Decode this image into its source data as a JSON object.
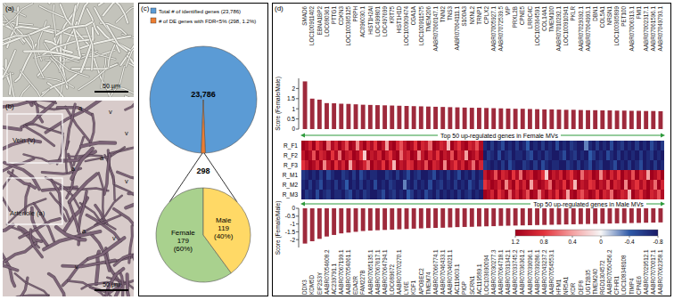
{
  "images": [
    {
      "label": "(a)",
      "scale_bar": "50 µm"
    },
    {
      "label": "(b)",
      "scale_bar": "50 µm",
      "regions": [
        "Vein (v)",
        "Arteriole (a)"
      ],
      "markers": [
        "a",
        "v",
        "v",
        "a",
        "a",
        "v",
        "a",
        "v",
        "v"
      ]
    }
  ],
  "chart_data": [
    {
      "type": "pie",
      "label": "(c)",
      "categories": [
        "Total # of identified genes (23,786)",
        "# of DE genes with FDR<5% (298, 1.2%)"
      ],
      "values": [
        23786,
        298
      ],
      "value_labels": [
        "23,786",
        "298"
      ],
      "colors": [
        "#5b9bd5",
        "#ed7d31"
      ],
      "data_labels": true,
      "legend": "top"
    },
    {
      "type": "pie",
      "categories": [
        "Female",
        "Male"
      ],
      "values": [
        179,
        119
      ],
      "value_labels": [
        "179",
        "119"
      ],
      "percent_labels": [
        "(60%)",
        "(40%)"
      ],
      "colors": [
        "#a9d18e",
        "#ffd966"
      ],
      "data_labels": true
    },
    {
      "type": "bar",
      "label": "(d)",
      "title": "Top 50 up-regulated genes in Female MVs",
      "y_label": "Score (Female/Male)",
      "categories": [
        "SMAD6",
        "LOC100911402",
        "EBNA1BP2",
        "LOC680361",
        "PTTG1",
        "CDKN3",
        "LOC100365125",
        "PRPH",
        "AC096030.1",
        "HIST1H2AI",
        "LOC499801",
        "LOC497699",
        "KRT75",
        "HIST1H1D",
        "LOC100909474",
        "CGA1A",
        "LOC100911575",
        "TMEM206",
        "AABR07060147.1",
        "TNNI2",
        "TNS3",
        "AABR07064111.1",
        "S100A3",
        "NXNL2",
        "TRNP1",
        "CPLX2",
        "AABR07005927.1",
        "AABR07072539.5",
        "VIP",
        "PRXL2B",
        "CPNE5",
        "LRRC4C",
        "LOC100364591",
        "COL14A1",
        "TMEM100",
        "AABR07010292.1",
        "LOC100910941",
        "PKLR",
        "AABR07029392.1",
        "AABR07064993.1",
        "DBN1",
        "COL5A1",
        "NRSN1",
        "LOC100365899",
        "PET100",
        "AABR07006313.1",
        "FMI1",
        "AABR07002317.1",
        "AABR07061596.1",
        "AABR07049793.1"
      ],
      "values": [
        2.35,
        1.5,
        1.45,
        1.28,
        1.27,
        1.25,
        1.24,
        1.22,
        1.2,
        1.19,
        1.18,
        1.17,
        1.16,
        1.15,
        1.14,
        1.13,
        1.12,
        1.11,
        1.1,
        1.09,
        1.08,
        1.07,
        1.06,
        1.05,
        1.05,
        1.04,
        1.03,
        1.02,
        1.01,
        1.0,
        1.0,
        0.99,
        0.98,
        0.97,
        0.97,
        0.96,
        0.95,
        0.95,
        0.94,
        0.93,
        0.93,
        0.92,
        0.92,
        0.91,
        0.91,
        0.9,
        0.9,
        0.89,
        0.89,
        0.88
      ],
      "color": "#9e2a3c",
      "ylim": [
        0,
        2.5
      ],
      "yticks": [
        0,
        0.5,
        1,
        1.5,
        2
      ]
    },
    {
      "type": "heatmap",
      "rows": [
        "R_F1",
        "R_F2",
        "R_F3",
        "R_M1",
        "R_M2",
        "R_M3"
      ],
      "cells": [
        [
          1.2,
          1.1,
          0.9,
          1.2,
          0.8,
          1.0,
          1.2,
          0.6,
          1.1,
          0.9,
          1.2,
          1.0,
          0.7,
          1.2,
          1.1,
          0.5,
          1.0,
          1.2,
          0.9,
          1.1,
          0.8,
          1.2,
          1.0,
          0.4,
          1.1,
          1.2,
          0.9,
          0.7,
          1.0,
          1.2,
          1.1,
          0.8,
          1.2,
          0.9,
          1.0,
          0.6,
          1.2,
          1.1,
          0.9,
          1.0,
          0.3,
          1.2,
          1.0,
          0.8,
          1.1,
          1.2,
          0.9,
          1.0,
          0.7,
          1.1,
          -0.7,
          -0.8,
          -0.6,
          -0.8,
          -0.7,
          -0.5,
          -0.8,
          -0.7,
          -0.8,
          -0.6,
          -0.8,
          -0.7,
          -0.4,
          -0.8,
          -0.7,
          -0.8,
          -0.6,
          -0.8,
          -0.7,
          -0.8,
          -0.5,
          -0.8,
          -0.7,
          -0.8,
          -0.6,
          -0.7,
          -0.8,
          -0.8,
          -0.3,
          -0.7,
          -0.8,
          -0.6,
          -0.8,
          -0.7,
          -0.8,
          -0.5,
          -0.8,
          -0.7,
          -0.6,
          -0.8,
          -0.7,
          -0.8,
          -0.6,
          -0.8,
          -0.7,
          -0.8,
          -0.5,
          -0.7,
          -0.8,
          -0.6
        ],
        [
          1.0,
          1.2,
          1.1,
          0.7,
          1.2,
          0.9,
          1.0,
          1.2,
          0.8,
          1.1,
          0.6,
          1.2,
          1.0,
          0.9,
          1.2,
          1.1,
          0.8,
          0.2,
          1.2,
          1.0,
          1.1,
          0.9,
          1.2,
          1.0,
          0.8,
          1.1,
          1.2,
          0.6,
          1.0,
          0.9,
          1.2,
          1.1,
          0.5,
          1.0,
          1.2,
          0.9,
          1.1,
          0.8,
          1.2,
          1.0,
          1.1,
          0.7,
          1.2,
          0.9,
          1.0,
          0.4,
          1.2,
          1.1,
          0.9,
          1.2,
          -0.8,
          -0.6,
          -0.7,
          -0.8,
          -0.5,
          -0.8,
          -0.7,
          -0.6,
          -0.8,
          -0.7,
          -0.7,
          -0.8,
          -0.6,
          -0.5,
          -0.8,
          -0.7,
          -0.8,
          -0.6,
          -0.7,
          -0.8,
          -0.8,
          -0.7,
          -0.5,
          -0.8,
          -0.7,
          -0.6,
          -0.8,
          -0.7,
          -0.8,
          -0.4,
          -0.6,
          -0.8,
          -0.7,
          -0.8,
          -0.5,
          -0.7,
          -0.8,
          -0.6,
          -0.8,
          -0.7,
          -0.8,
          -0.7,
          -0.8,
          -0.6,
          -0.8,
          -0.7,
          -0.6,
          -0.8,
          -0.7,
          -0.8
        ],
        [
          0.8,
          1.0,
          1.2,
          1.1,
          0.9,
          1.2,
          0.5,
          1.0,
          1.2,
          0.8,
          1.1,
          0.9,
          1.2,
          0.4,
          1.0,
          1.2,
          1.1,
          0.9,
          0.6,
          1.2,
          1.0,
          1.1,
          0.8,
          1.2,
          0.9,
          0.3,
          1.2,
          1.0,
          1.1,
          0.8,
          0.9,
          1.2,
          1.0,
          1.1,
          0.7,
          1.2,
          0.9,
          1.0,
          1.2,
          0.5,
          1.2,
          1.0,
          0.8,
          1.1,
          0.9,
          1.2,
          1.0,
          0.6,
          1.2,
          0.9,
          -0.6,
          -0.7,
          -0.8,
          -0.7,
          -0.8,
          -0.6,
          -0.8,
          -0.5,
          -0.7,
          -0.8,
          -0.8,
          -0.6,
          -0.7,
          -0.8,
          -0.6,
          -0.8,
          -0.5,
          -0.7,
          -0.8,
          -0.7,
          -0.7,
          -0.8,
          -0.8,
          -0.6,
          -0.7,
          -0.8,
          -0.6,
          -0.8,
          -0.7,
          -0.5,
          -0.8,
          -0.7,
          -0.6,
          -0.8,
          -0.8,
          -0.7,
          -0.5,
          -0.8,
          -0.7,
          -0.8,
          -0.6,
          -0.8,
          -0.7,
          -0.5,
          -0.8,
          -0.7,
          -0.8,
          -0.6,
          -0.8,
          -0.7
        ],
        [
          -0.6,
          -0.7,
          -0.8,
          -0.7,
          -0.8,
          -0.6,
          -0.8,
          -0.5,
          -0.7,
          -0.8,
          -0.8,
          -0.6,
          -0.7,
          -0.8,
          -0.6,
          -0.8,
          -0.5,
          -0.7,
          -0.8,
          -0.7,
          -0.7,
          -0.8,
          -0.8,
          -0.6,
          -0.7,
          -0.8,
          -0.6,
          -0.8,
          -0.7,
          -0.5,
          -0.8,
          -0.7,
          -0.6,
          -0.8,
          -0.8,
          -0.7,
          -0.5,
          -0.8,
          -0.7,
          -0.8,
          -0.6,
          -0.8,
          -0.7,
          -0.5,
          -0.8,
          -0.7,
          -0.8,
          -0.6,
          -0.8,
          -0.7,
          1.0,
          1.2,
          1.1,
          0.7,
          1.2,
          0.9,
          1.0,
          1.2,
          0.8,
          1.1,
          0.6,
          1.2,
          1.0,
          0.9,
          1.2,
          1.1,
          0.8,
          0.2,
          1.2,
          1.0,
          1.1,
          0.9,
          1.2,
          1.0,
          0.8,
          1.1,
          1.2,
          0.6,
          1.0,
          0.9,
          1.2,
          1.1,
          0.5,
          1.0,
          1.2,
          0.9,
          1.1,
          0.8,
          1.2,
          1.0,
          1.1,
          0.7,
          1.2,
          0.9,
          1.0,
          0.4,
          1.2,
          1.1,
          0.9,
          1.2
        ],
        [
          -0.7,
          -0.8,
          -0.6,
          -0.8,
          -0.7,
          -0.5,
          -0.8,
          -0.7,
          -0.8,
          -0.6,
          -0.8,
          -0.7,
          -0.4,
          -0.8,
          -0.7,
          -0.8,
          -0.6,
          -0.8,
          -0.7,
          -0.8,
          -0.5,
          -0.8,
          -0.7,
          -0.8,
          -0.6,
          -0.7,
          -0.8,
          -0.8,
          -0.3,
          -0.7,
          -0.8,
          -0.6,
          -0.8,
          -0.7,
          -0.8,
          -0.5,
          -0.8,
          -0.7,
          -0.6,
          -0.8,
          -0.7,
          -0.8,
          -0.6,
          -0.8,
          -0.7,
          -0.8,
          -0.5,
          -0.7,
          -0.8,
          -0.6,
          0.8,
          1.0,
          1.2,
          1.1,
          0.9,
          1.2,
          0.5,
          1.0,
          1.2,
          0.8,
          1.1,
          0.9,
          1.2,
          0.4,
          1.0,
          1.2,
          1.1,
          0.9,
          0.6,
          1.2,
          1.0,
          1.1,
          0.8,
          1.2,
          0.9,
          0.3,
          1.2,
          1.0,
          1.1,
          0.8,
          0.9,
          1.2,
          1.0,
          1.1,
          0.7,
          1.2,
          0.9,
          1.0,
          1.2,
          0.5,
          1.2,
          1.0,
          0.8,
          1.1,
          0.9,
          1.2,
          1.0,
          0.6,
          1.2,
          0.9
        ],
        [
          -0.8,
          -0.6,
          -0.7,
          -0.8,
          -0.5,
          -0.8,
          -0.7,
          -0.6,
          -0.8,
          -0.7,
          -0.7,
          -0.8,
          -0.6,
          -0.5,
          -0.8,
          -0.7,
          -0.8,
          -0.6,
          -0.7,
          -0.8,
          -0.8,
          -0.7,
          -0.5,
          -0.8,
          -0.7,
          -0.6,
          -0.8,
          -0.7,
          -0.8,
          -0.4,
          -0.6,
          -0.8,
          -0.7,
          -0.8,
          -0.5,
          -0.7,
          -0.8,
          -0.6,
          -0.8,
          -0.7,
          -0.8,
          -0.7,
          -0.8,
          -0.6,
          -0.8,
          -0.7,
          -0.6,
          -0.8,
          -0.7,
          -0.8,
          1.2,
          1.1,
          0.9,
          1.2,
          0.8,
          1.0,
          1.2,
          0.6,
          1.1,
          0.9,
          1.2,
          1.0,
          0.7,
          1.2,
          1.1,
          0.5,
          1.0,
          1.2,
          0.9,
          1.1,
          0.8,
          1.2,
          1.0,
          0.4,
          1.1,
          1.2,
          0.9,
          0.7,
          1.0,
          1.2,
          1.1,
          0.8,
          1.2,
          0.9,
          1.0,
          0.6,
          1.2,
          1.1,
          0.9,
          1.0,
          0.3,
          1.2,
          1.0,
          0.8,
          1.1,
          1.2,
          0.9,
          1.0,
          0.7,
          1.1
        ]
      ],
      "colorbar": {
        "range": [
          -0.8,
          1.2
        ],
        "ticks": [
          1.2,
          0.8,
          0.4,
          0,
          -0.4,
          -0.8
        ]
      }
    },
    {
      "type": "bar",
      "title": "Top 50 up-regulated genes in Male MVs",
      "y_label": "Score (Female/Male)",
      "categories": [
        "DDX3",
        "KDM5D",
        "EIF2S3Y",
        "AABR07054608.2",
        "AC239791.1",
        "AABR07067199.1",
        "AABR07054061.1",
        "EDA2R",
        "FAM227B",
        "AABR07065135.1",
        "AABR07067617.1",
        "AABR07064794.1",
        "LOC689672",
        "AABR07070270.1",
        "LY6E",
        "KDF1",
        "APOBEC2",
        "TMEM74",
        "AABR07066774.1",
        "AABR07046433.1",
        "AABR07046021.1",
        "AC119603.1",
        "PIGP",
        "SCRN1",
        "AC119589.1",
        "LOC103690094",
        "AABR07030277.3",
        "AABR07064718.1",
        "AABR07031342.1",
        "AABR07033745.2",
        "AABR07036361.2",
        "AABR07039096.1",
        "AABR07039286.1",
        "AABR07043237.2",
        "AABR07054553.1",
        "HFM1",
        "NR5A1",
        "KDR",
        "DEF8",
        "UGT2B35",
        "TMEM240",
        "RGD1304572",
        "AABR07050456.2",
        "CFHR1",
        "LOC108348108",
        "TIMP4",
        "CPNE6",
        "AABR07029512.1",
        "AABR07070017.1",
        "AABR07062358.1"
      ],
      "values": [
        -2.25,
        -2.1,
        -1.95,
        -1.8,
        -1.7,
        -1.6,
        -1.55,
        -1.5,
        -1.45,
        -1.42,
        -1.4,
        -1.38,
        -1.36,
        -1.34,
        -1.32,
        -1.3,
        -1.28,
        -1.26,
        -1.25,
        -1.24,
        -1.22,
        -1.2,
        -1.19,
        -1.18,
        -1.16,
        -1.15,
        -1.14,
        -1.12,
        -1.11,
        -1.1,
        -1.09,
        -1.08,
        -1.07,
        -1.06,
        -1.05,
        -1.04,
        -1.03,
        -1.02,
        -1.01,
        -1.0,
        -0.99,
        -0.98,
        -0.97,
        -0.96,
        -0.95,
        -0.94,
        -0.93,
        -0.92,
        -0.91,
        -0.9
      ],
      "color": "#9e2a3c",
      "ylim": [
        -2.5,
        0
      ],
      "yticks": [
        -2,
        -1.5,
        -1,
        -0.5,
        0
      ]
    }
  ]
}
